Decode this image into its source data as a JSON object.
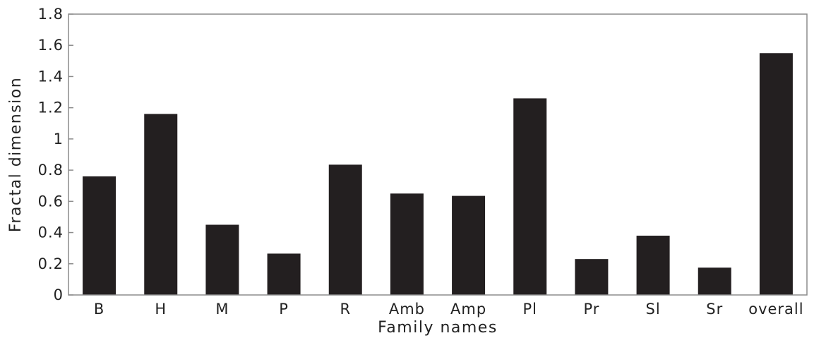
{
  "chart_data": {
    "type": "bar",
    "categories": [
      "B",
      "H",
      "M",
      "P",
      "R",
      "Amb",
      "Amp",
      "Pl",
      "Pr",
      "Sl",
      "Sr",
      "overall"
    ],
    "values": [
      0.76,
      1.16,
      0.45,
      0.265,
      0.835,
      0.65,
      0.635,
      1.26,
      0.23,
      0.38,
      0.175,
      1.55
    ],
    "xlabel": "Family names",
    "ylabel": "Fractal dimension",
    "ylim": [
      0,
      1.8
    ],
    "yticks": [
      0,
      0.2,
      0.4,
      0.6,
      0.8,
      1,
      1.2,
      1.4,
      1.6,
      1.8
    ],
    "ytick_labels": [
      "0",
      "0.2",
      "0.4",
      "0.6",
      "0.8",
      "1",
      "1.2",
      "1.4",
      "1.6",
      "1.8"
    ],
    "bar_color": "#231f20",
    "frame_color": "#8c8c8c",
    "grid": false,
    "legend": "none"
  }
}
